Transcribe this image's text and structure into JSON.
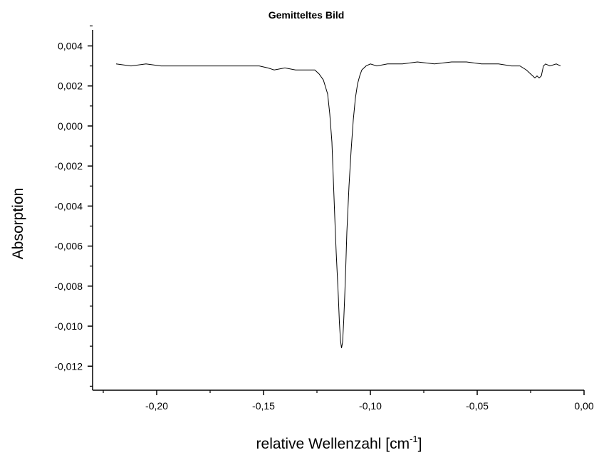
{
  "chart_data": {
    "type": "line",
    "title": "Gemitteltes Bild",
    "xlabel": "relative Wellenzahl [cm",
    "xlabel_sup": "-1",
    "xlabel_end": "]",
    "ylabel": "Absorption",
    "xlim": [
      -0.23,
      0.0
    ],
    "ylim": [
      -0.0132,
      0.0048
    ],
    "x_ticks": [
      -0.2,
      -0.15,
      -0.1,
      -0.05,
      0.0
    ],
    "x_tick_labels": [
      "-0,20",
      "-0,15",
      "-0,10",
      "-0,05",
      "0,00"
    ],
    "y_ticks": [
      0.004,
      0.002,
      0.0,
      -0.002,
      -0.004,
      -0.006,
      -0.008,
      -0.01,
      -0.012
    ],
    "y_tick_labels": [
      "0,004",
      "0,002",
      "0,000",
      "-0,002",
      "-0,004",
      "-0,006",
      "-0,008",
      "-0,010",
      "-0,012"
    ],
    "grid": false,
    "legend": "none",
    "line_color": "#000000",
    "series": [
      {
        "x": [
          -0.219,
          -0.212,
          -0.205,
          -0.198,
          -0.19,
          -0.182,
          -0.175,
          -0.168,
          -0.16,
          -0.152,
          -0.148,
          -0.145,
          -0.14,
          -0.135,
          -0.13,
          -0.126,
          -0.124,
          -0.122,
          -0.12,
          -0.119,
          -0.118,
          -0.1175,
          -0.117,
          -0.1165,
          -0.116,
          -0.115,
          -0.1145,
          -0.114,
          -0.1135,
          -0.113,
          -0.1125,
          -0.112,
          -0.1115,
          -0.111,
          -0.11,
          -0.109,
          -0.108,
          -0.107,
          -0.106,
          -0.105,
          -0.104,
          -0.103,
          -0.102,
          -0.1,
          -0.097,
          -0.092,
          -0.085,
          -0.078,
          -0.07,
          -0.062,
          -0.055,
          -0.048,
          -0.04,
          -0.034,
          -0.03,
          -0.027,
          -0.025,
          -0.024,
          -0.023,
          -0.022,
          -0.021,
          -0.02,
          -0.019,
          -0.018,
          -0.016,
          -0.013,
          -0.011
        ],
        "y": [
          0.0031,
          0.003,
          0.0031,
          0.003,
          0.003,
          0.003,
          0.003,
          0.003,
          0.003,
          0.003,
          0.0029,
          0.0028,
          0.0029,
          0.0028,
          0.0028,
          0.0028,
          0.0026,
          0.0023,
          0.0016,
          0.0006,
          -0.0008,
          -0.0022,
          -0.0036,
          -0.005,
          -0.0063,
          -0.0085,
          -0.0098,
          -0.0107,
          -0.0111,
          -0.0108,
          -0.0098,
          -0.0085,
          -0.007,
          -0.0053,
          -0.003,
          -0.0012,
          0.0003,
          0.0014,
          0.0021,
          0.0025,
          0.0028,
          0.0029,
          0.003,
          0.0031,
          0.003,
          0.0031,
          0.0031,
          0.0032,
          0.0031,
          0.0032,
          0.0032,
          0.0031,
          0.0031,
          0.003,
          0.003,
          0.0028,
          0.0026,
          0.0025,
          0.0024,
          0.0025,
          0.0024,
          0.0025,
          0.003,
          0.0031,
          0.003,
          0.0031,
          0.003
        ]
      }
    ]
  }
}
